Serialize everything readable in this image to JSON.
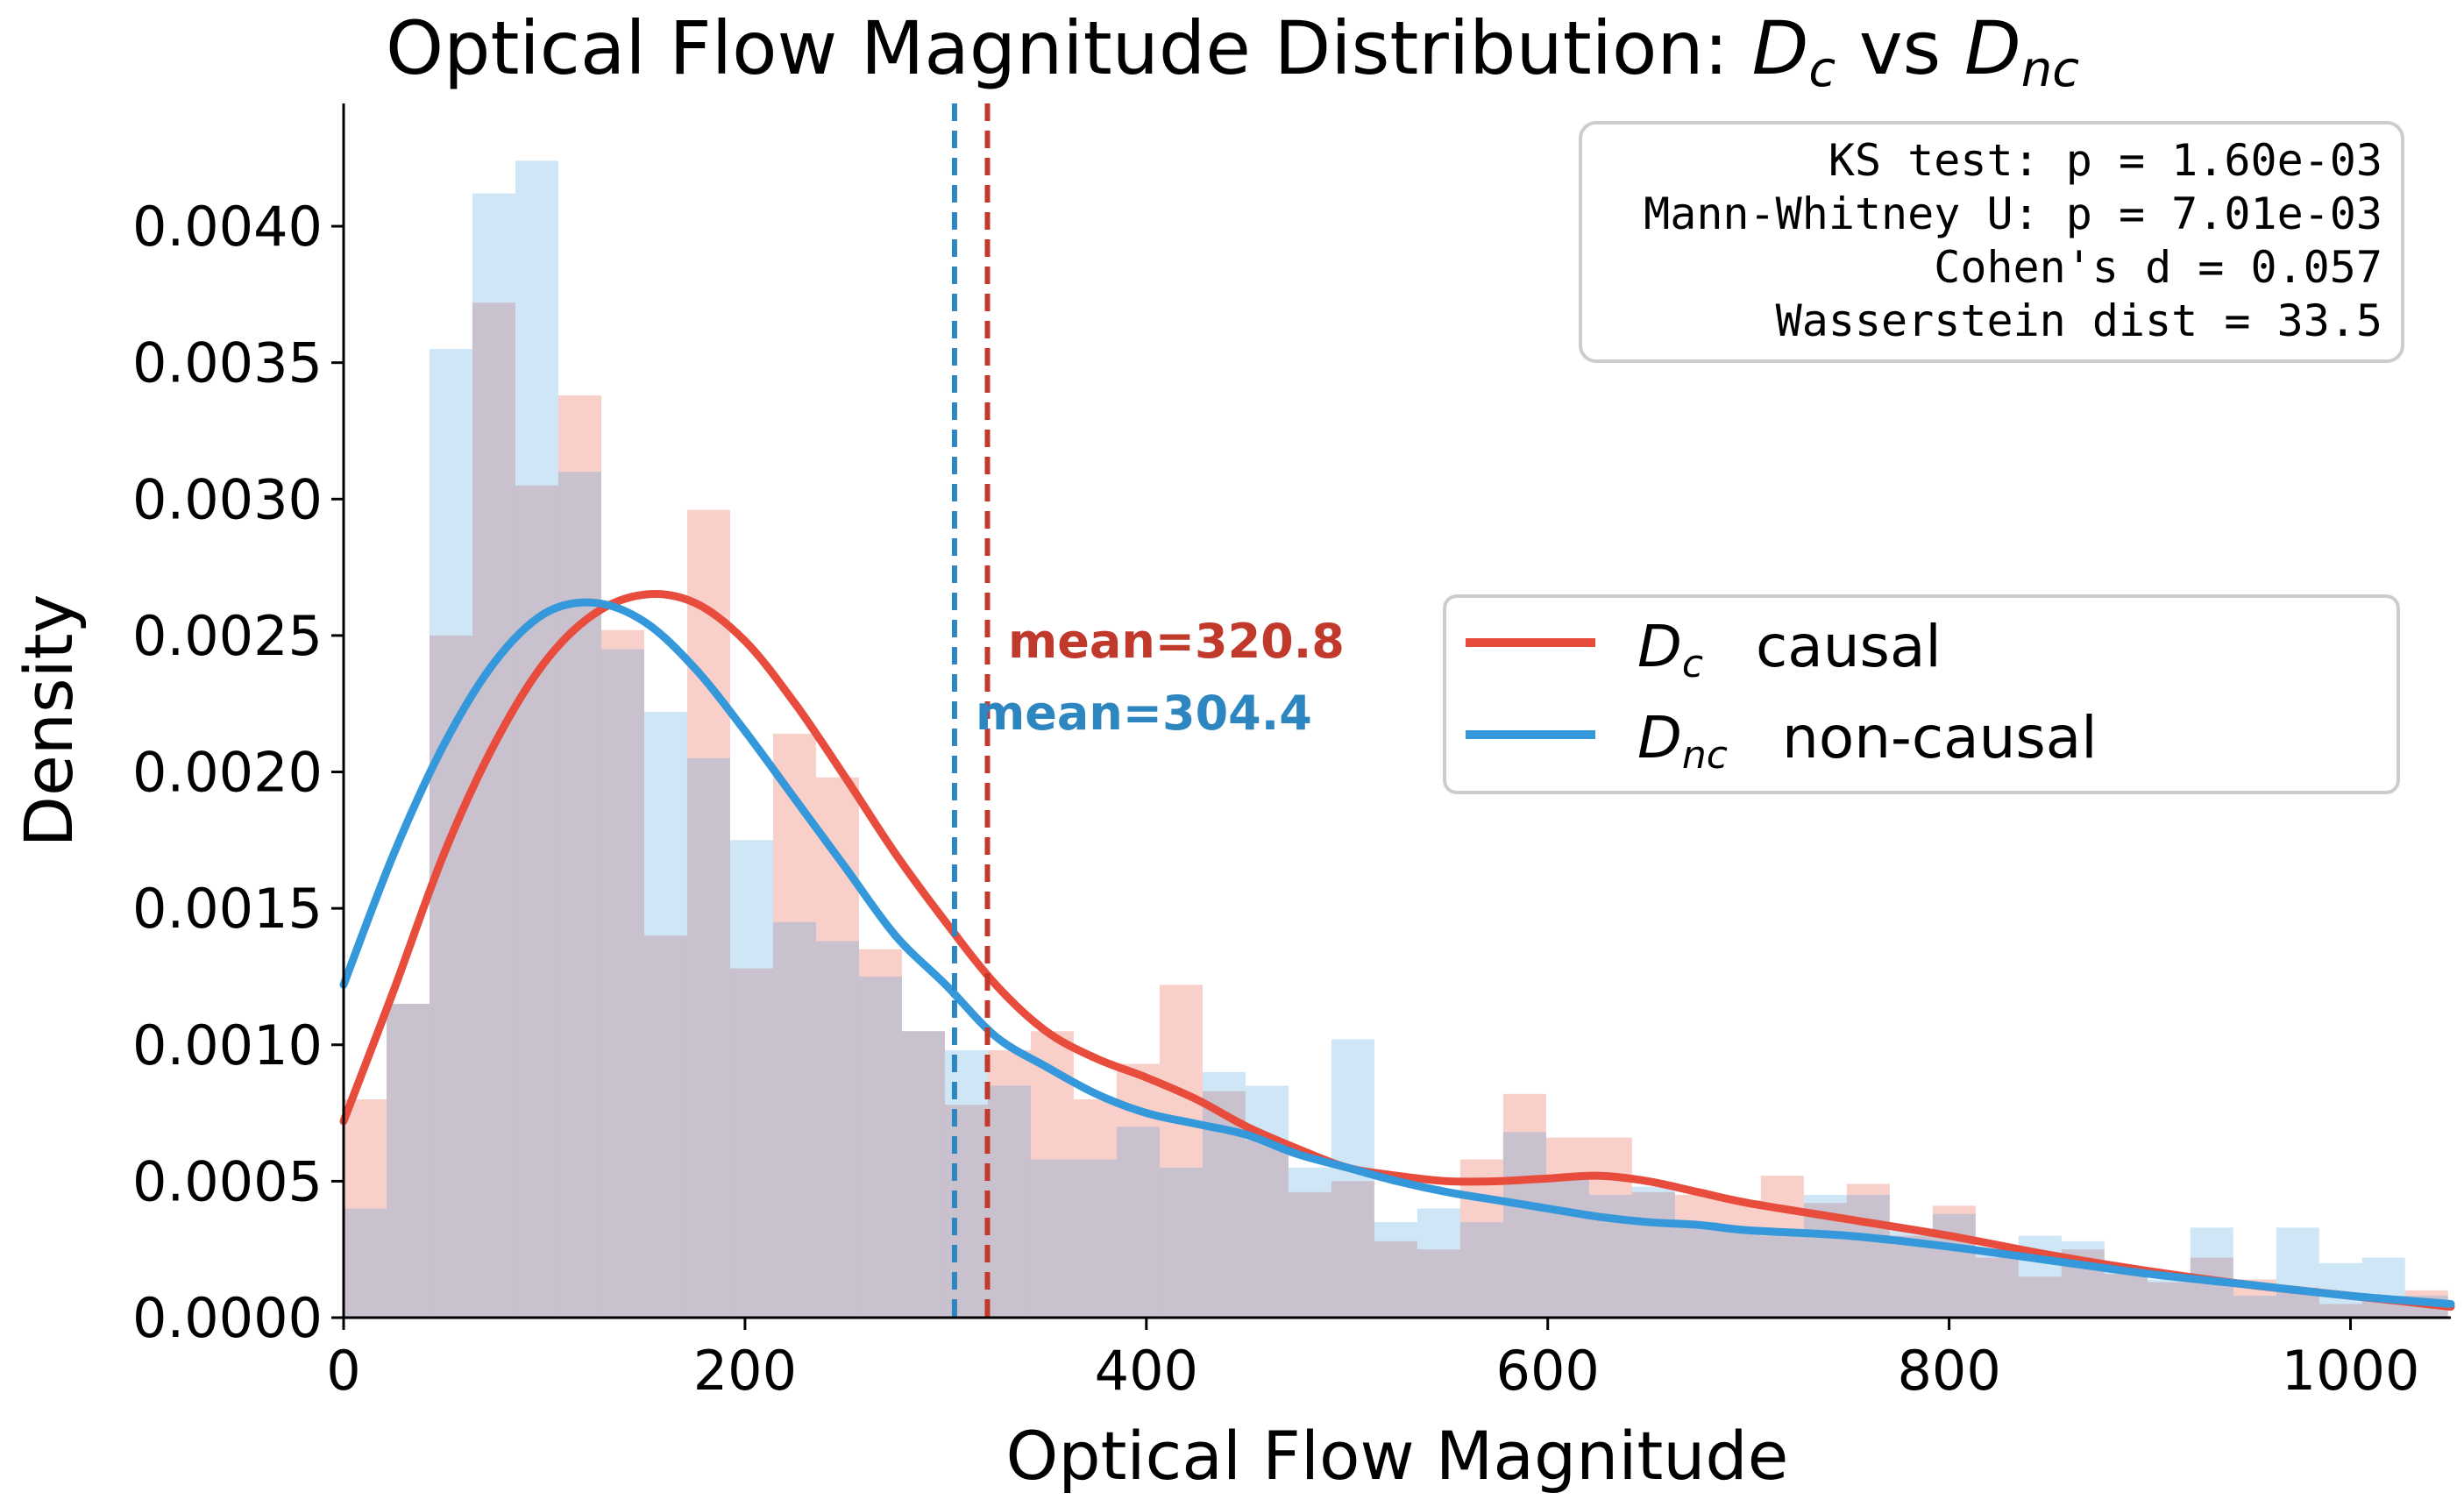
{
  "chart_data": {
    "type": "histogram",
    "title": {
      "prefix": "Optical Flow Magnitude Distribution: ",
      "series_a": "D",
      "series_a_sub": "c",
      "sep": " vs ",
      "series_b": "D",
      "series_b_sub": "nc"
    },
    "xlabel": "Optical Flow Magnitude",
    "ylabel": "Density",
    "xlim": [
      0,
      1050
    ],
    "ylim": [
      0,
      0.00445
    ],
    "xticks": [
      0,
      200,
      400,
      600,
      800,
      1000
    ],
    "xtick_labels": [
      "0",
      "200",
      "400",
      "600",
      "800",
      "1000"
    ],
    "yticks": [
      0,
      0.0005,
      0.001,
      0.0015,
      0.002,
      0.0025,
      0.003,
      0.0035,
      0.004
    ],
    "ytick_labels": [
      "0.0000",
      "0.0005",
      "0.0010",
      "0.0015",
      "0.0020",
      "0.0025",
      "0.0030",
      "0.0035",
      "0.0040"
    ],
    "bin_width": 21.4,
    "series": [
      {
        "key": "causal",
        "symbol": "D",
        "subscript": "c",
        "name": "causal",
        "color": "#e74c3c",
        "mean": 320.8,
        "mean_label": "mean=320.8",
        "mean_line_color": "#c0392b",
        "hist": [
          0.0008,
          0.00115,
          0.0025,
          0.00372,
          0.00305,
          0.00338,
          0.00252,
          0.0014,
          0.00296,
          0.00128,
          0.00214,
          0.00198,
          0.00135,
          0.00105,
          0.00078,
          0.00098,
          0.00105,
          0.0008,
          0.00093,
          0.00122,
          0.00083,
          0.00065,
          0.00046,
          0.0005,
          0.00028,
          0.00025,
          0.00058,
          0.00082,
          0.00066,
          0.00066,
          0.00046,
          0.00045,
          0.00043,
          0.00052,
          0.00042,
          0.00049,
          0.0003,
          0.00041,
          0.00022,
          0.00015,
          0.00025,
          0.00016,
          0.00013,
          0.00022,
          0.00014,
          0.00011,
          5e-05,
          8e-05,
          0.0001
        ],
        "kde_x": [
          0,
          25,
          50,
          75,
          100,
          125,
          150,
          175,
          200,
          225,
          250,
          275,
          300,
          325,
          350,
          375,
          400,
          425,
          450,
          475,
          500,
          525,
          550,
          575,
          600,
          625,
          650,
          675,
          700,
          750,
          800,
          850,
          900,
          950,
          1000,
          1050
        ],
        "kde_y": [
          0.00072,
          0.0012,
          0.0017,
          0.0021,
          0.0024,
          0.00258,
          0.00265,
          0.00262,
          0.00248,
          0.00225,
          0.00198,
          0.0017,
          0.00145,
          0.00122,
          0.00105,
          0.00095,
          0.00088,
          0.0008,
          0.0007,
          0.00062,
          0.00055,
          0.00052,
          0.0005,
          0.0005,
          0.00051,
          0.00052,
          0.0005,
          0.00046,
          0.00042,
          0.00036,
          0.0003,
          0.00023,
          0.00017,
          0.00012,
          8e-05,
          4e-05
        ]
      },
      {
        "key": "noncausal",
        "symbol": "D",
        "subscript": "nc",
        "name": "non-causal",
        "color": "#3498db",
        "mean": 304.4,
        "mean_label": "mean=304.4",
        "mean_line_color": "#2e86c1",
        "hist": [
          0.0004,
          0.00115,
          0.00355,
          0.00412,
          0.00424,
          0.0031,
          0.00245,
          0.00222,
          0.00205,
          0.00175,
          0.00145,
          0.00138,
          0.00125,
          0.00105,
          0.00098,
          0.00085,
          0.00058,
          0.00058,
          0.0007,
          0.00055,
          0.0009,
          0.00085,
          0.00055,
          0.00102,
          0.00035,
          0.0004,
          0.00035,
          0.00068,
          0.00052,
          0.00045,
          0.00048,
          0.00035,
          0.00033,
          0.0003,
          0.00045,
          0.00045,
          0.00032,
          0.00038,
          0.00025,
          0.0003,
          0.00028,
          0.00018,
          0.00014,
          0.00033,
          8e-05,
          0.00033,
          0.0002,
          0.00022,
          8e-05
        ],
        "kde_x": [
          0,
          25,
          50,
          75,
          100,
          125,
          150,
          175,
          200,
          225,
          250,
          275,
          300,
          325,
          350,
          375,
          400,
          425,
          450,
          475,
          500,
          525,
          550,
          575,
          600,
          625,
          650,
          675,
          700,
          750,
          800,
          850,
          900,
          950,
          1000,
          1050
        ],
        "kde_y": [
          0.00122,
          0.0017,
          0.0021,
          0.0024,
          0.00258,
          0.00262,
          0.00255,
          0.00238,
          0.00215,
          0.0019,
          0.00165,
          0.0014,
          0.00122,
          0.00103,
          0.00092,
          0.00082,
          0.00075,
          0.00071,
          0.00067,
          0.0006,
          0.00055,
          0.0005,
          0.00046,
          0.00043,
          0.0004,
          0.00037,
          0.00035,
          0.00034,
          0.00032,
          0.0003,
          0.00026,
          0.00021,
          0.00016,
          0.00012,
          8e-05,
          5e-05
        ]
      }
    ],
    "stats_box": [
      "KS test: p = 1.60e-03",
      "Mann-Whitney U: p = 7.01e-03",
      "Cohen's d = 0.057",
      "Wasserstein dist = 33.5"
    ],
    "legend_position": "center-right",
    "grid": false
  }
}
